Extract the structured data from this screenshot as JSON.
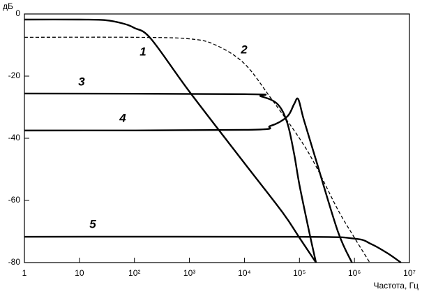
{
  "chart_data": {
    "type": "line",
    "y_label": "дБ",
    "x_label": "Частота, Гц",
    "x_scale": "log",
    "xlim": [
      1,
      10000000
    ],
    "ylim": [
      -80,
      0
    ],
    "xticks": [
      1,
      10,
      {
        "value": 100,
        "label": "10²"
      },
      {
        "value": 1000,
        "label": "10³"
      },
      {
        "value": 10000,
        "label": "10⁴"
      },
      {
        "value": 100000,
        "label": "10⁵"
      },
      {
        "value": 1000000,
        "label": "10⁶"
      },
      {
        "value": 10000000,
        "label": "10⁷"
      }
    ],
    "yticks": [
      0,
      -20,
      -40,
      -60,
      -80
    ],
    "series": [
      {
        "name": "1",
        "color": "#000000",
        "dash": false,
        "x": [
          1,
          10,
          30,
          60,
          100,
          200,
          1000,
          10000,
          50000,
          100000,
          200000
        ],
        "values": [
          -1.8,
          -1.8,
          -2,
          -3,
          -4.5,
          -8,
          -25,
          -48,
          -64,
          -72,
          -80
        ]
      },
      {
        "name": "2",
        "color": "#000000",
        "dash": true,
        "x": [
          1,
          100,
          1000,
          3000,
          10000,
          30000,
          100000,
          200000,
          500000,
          1000000,
          1900000
        ],
        "values": [
          -7.5,
          -7.5,
          -8,
          -10,
          -16,
          -27,
          -40,
          -49,
          -63,
          -72,
          -80
        ]
      },
      {
        "name": "3",
        "color": "#000000",
        "dash": false,
        "x": [
          1,
          10000,
          20000,
          40000,
          60000,
          80000,
          100000,
          150000,
          200000
        ],
        "values": [
          -25.6,
          -25.8,
          -26.5,
          -29,
          -35,
          -45,
          -55,
          -70,
          -80
        ]
      },
      {
        "name": "4",
        "color": "#000000",
        "dash": false,
        "x": [
          1,
          10000,
          30000,
          60000,
          80000,
          95000,
          120000,
          200000,
          500000,
          900000
        ],
        "values": [
          -37.5,
          -37.3,
          -36,
          -33,
          -29,
          -27.4,
          -34,
          -47,
          -70,
          -80
        ]
      },
      {
        "name": "5",
        "color": "#000000",
        "dash": false,
        "x": [
          1,
          100000,
          1000000,
          2000000,
          4000000,
          7000000
        ],
        "values": [
          -71.7,
          -71.7,
          -72.3,
          -74,
          -77,
          -80
        ]
      }
    ]
  }
}
